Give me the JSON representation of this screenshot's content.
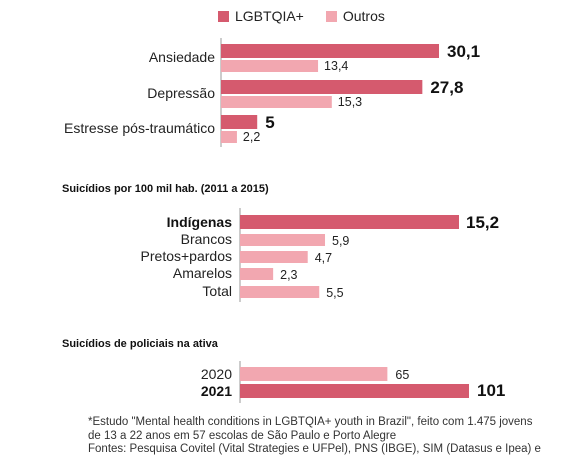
{
  "legend": [
    {
      "label": "LGBTQIA+",
      "color": "#d55a6e"
    },
    {
      "label": "Outros",
      "color": "#f2a7b0"
    }
  ],
  "colors": {
    "dark": "#d55a6e",
    "light": "#f2a7b0",
    "axis": "#999999"
  },
  "chart_data": [
    {
      "type": "bar",
      "orientation": "horizontal",
      "title": "",
      "categories": [
        "Ansiedade",
        "Depressão",
        "Estresse pós-traumático"
      ],
      "series": [
        {
          "name": "LGBTQIA+",
          "values": [
            30.1,
            27.8,
            5
          ],
          "labels": [
            "30,1",
            "27,8",
            "5"
          ]
        },
        {
          "name": "Outros",
          "values": [
            13.4,
            15.3,
            2.2
          ],
          "labels": [
            "13,4",
            "15,3",
            "2,2"
          ]
        }
      ],
      "xlim": [
        0,
        30.1
      ]
    },
    {
      "type": "bar",
      "orientation": "horizontal",
      "title": "Suicídios por 100 mil hab. (2011 a 2015)",
      "categories": [
        "Indígenas",
        "Brancos",
        "Pretos+pardos",
        "Amarelos",
        "Total"
      ],
      "values": [
        15.2,
        5.9,
        4.7,
        2.3,
        5.5
      ],
      "labels": [
        "15,2",
        "5,9",
        "4,7",
        "2,3",
        "5,5"
      ],
      "highlight": [
        true,
        false,
        false,
        false,
        false
      ],
      "xlim": [
        0,
        15.2
      ]
    },
    {
      "type": "bar",
      "orientation": "horizontal",
      "title": "Suicídios de policiais na ativa",
      "categories": [
        "2020",
        "2021"
      ],
      "values": [
        65,
        101
      ],
      "labels": [
        "65",
        "101"
      ],
      "highlight": [
        false,
        true
      ],
      "xlim": [
        0,
        101
      ]
    }
  ],
  "footnote": [
    "*Estudo \"Mental health conditions in LGBTQIA+ youth in Brazil\", feito com 1.475 jovens",
    "de 13 a 22 anos em 57 escolas de São Paulo e Porto Alegre",
    "Fontes: Pesquisa Covitel (Vital Strategies e UFPel), PNS (IBGE), SIM (Datasus e Ipea) e"
  ]
}
